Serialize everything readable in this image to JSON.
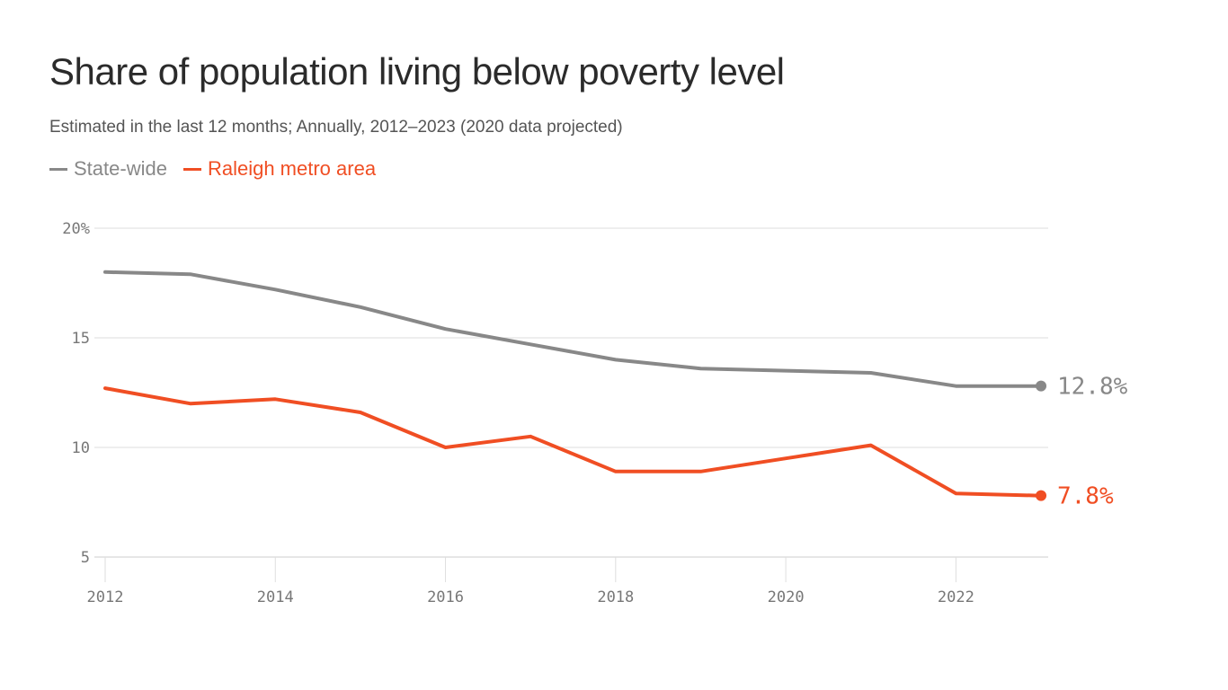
{
  "title": "Share of population living below poverty level",
  "subtitle": "Estimated in the last 12 months; Annually, 2012–2023 (2020 data projected)",
  "legend": [
    {
      "label": "State-wide",
      "color": "#888888"
    },
    {
      "label": "Raleigh metro area",
      "color": "#f04e23"
    }
  ],
  "chart_data": {
    "type": "line",
    "title": "Share of population living below poverty level",
    "subtitle": "Estimated in the last 12 months; Annually, 2012–2023 (2020 data projected)",
    "x": [
      2012,
      2013,
      2014,
      2015,
      2016,
      2017,
      2018,
      2019,
      2020,
      2021,
      2022,
      2023
    ],
    "series": [
      {
        "name": "State-wide",
        "color": "#888888",
        "values": [
          18.0,
          17.9,
          17.2,
          16.4,
          15.4,
          14.7,
          14.0,
          13.6,
          13.5,
          13.4,
          12.8,
          12.8
        ],
        "end_label": "12.8%"
      },
      {
        "name": "Raleigh metro area",
        "color": "#f04e23",
        "values": [
          12.7,
          12.0,
          12.2,
          11.6,
          10.0,
          10.5,
          8.9,
          8.9,
          9.5,
          10.1,
          7.9,
          7.8
        ],
        "end_label": "7.8%"
      }
    ],
    "ylim": [
      5,
      20
    ],
    "y_ticks": [
      {
        "value": 20,
        "label": "20%"
      },
      {
        "value": 15,
        "label": "15"
      },
      {
        "value": 10,
        "label": "10"
      },
      {
        "value": 5,
        "label": "5"
      }
    ],
    "x_ticks": [
      {
        "value": 2012,
        "label": "2012"
      },
      {
        "value": 2014,
        "label": "2014"
      },
      {
        "value": 2016,
        "label": "2016"
      },
      {
        "value": 2018,
        "label": "2018"
      },
      {
        "value": 2020,
        "label": "2020"
      },
      {
        "value": 2022,
        "label": "2022"
      }
    ],
    "grid": true,
    "legend_position": "top-left"
  }
}
